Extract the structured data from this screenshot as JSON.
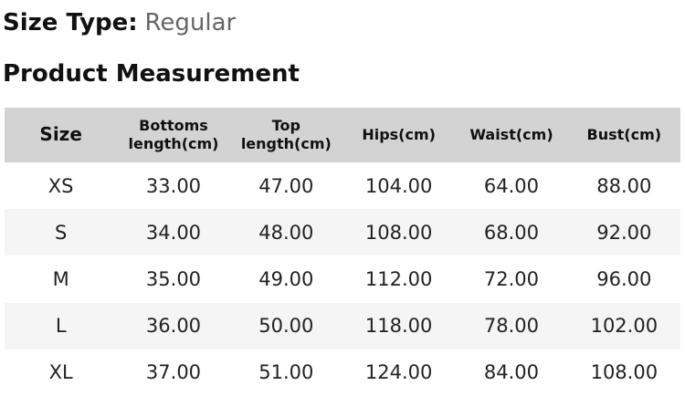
{
  "page": {
    "size_type_label": "Size Type:",
    "size_type_value": "Regular",
    "section_title": "Product Measurement"
  },
  "table": {
    "headers": [
      "Size",
      "Bottoms\nlength(cm)",
      "Top\nlength(cm)",
      "Hips(cm)",
      "Waist(cm)",
      "Bust(cm)"
    ],
    "rows": [
      [
        "XS",
        "33.00",
        "47.00",
        "104.00",
        "64.00",
        "88.00"
      ],
      [
        "S",
        "34.00",
        "48.00",
        "108.00",
        "68.00",
        "92.00"
      ],
      [
        "M",
        "35.00",
        "49.00",
        "112.00",
        "72.00",
        "96.00"
      ],
      [
        "L",
        "36.00",
        "50.00",
        "118.00",
        "78.00",
        "102.00"
      ],
      [
        "XL",
        "37.00",
        "51.00",
        "124.00",
        "84.00",
        "108.00"
      ]
    ]
  },
  "colors": {
    "header_bg": "#d3d3d3",
    "stripe_bg": "#f5f5f5",
    "heading_text": "#111111",
    "body_text": "#222222",
    "muted_text": "#666666",
    "page_bg": "#ffffff"
  }
}
